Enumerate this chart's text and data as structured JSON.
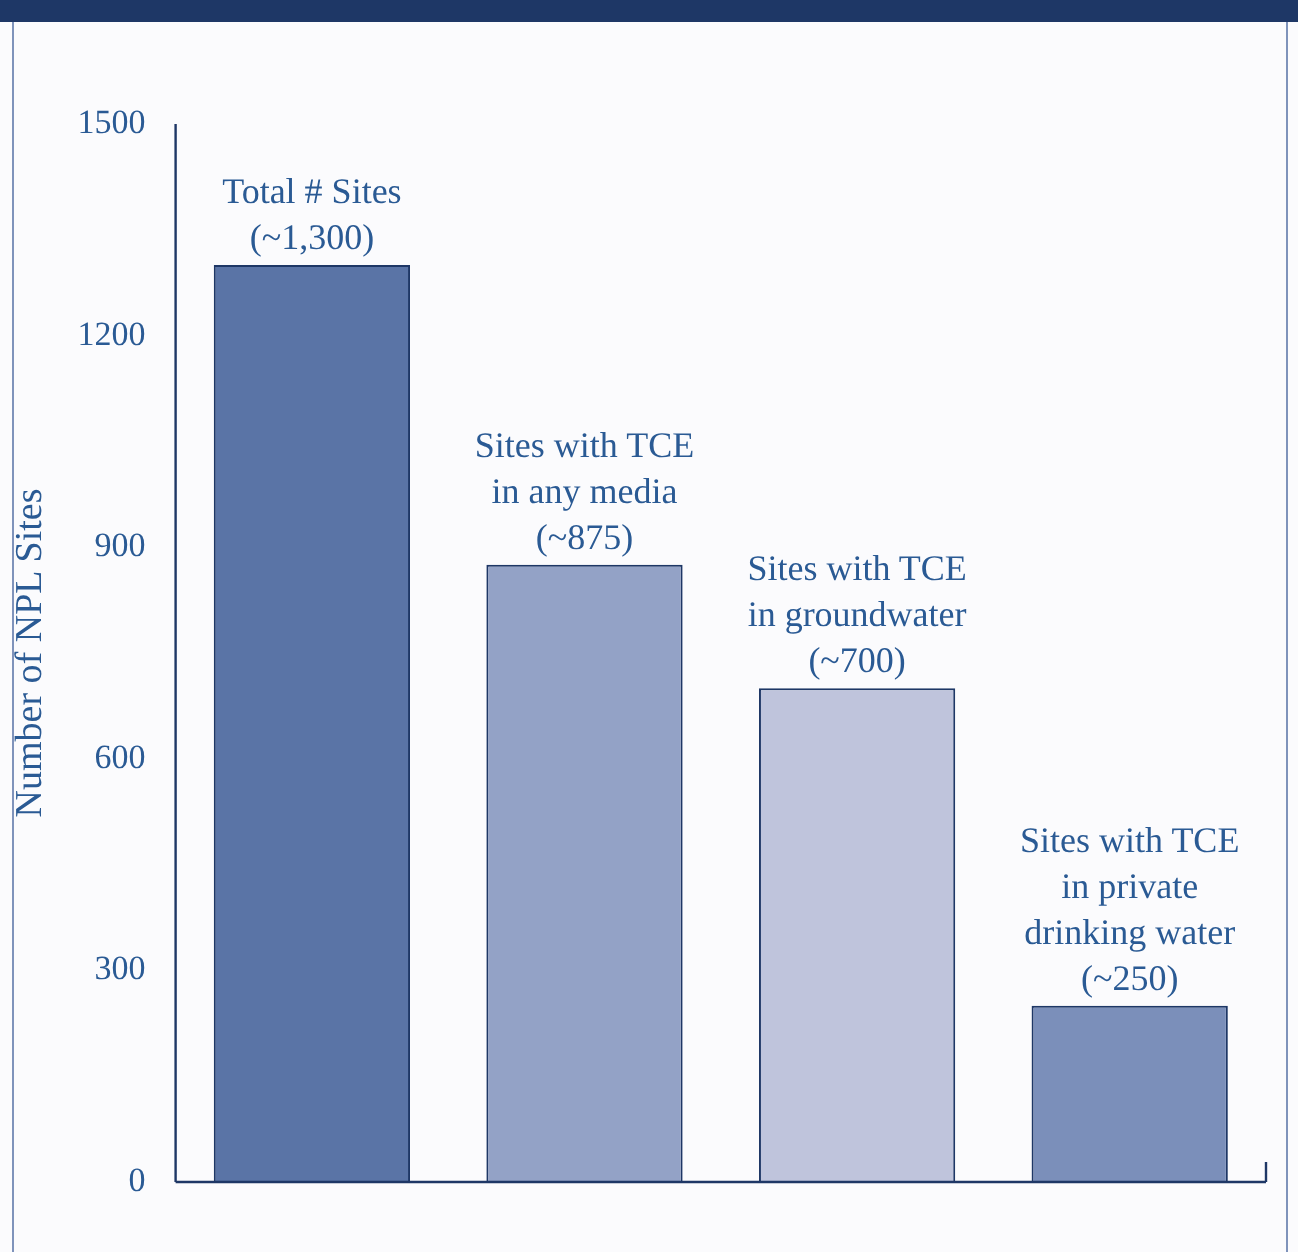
{
  "chart_data": {
    "type": "bar",
    "ylabel": "Number of NPL Sites",
    "categories": [
      "Total # Sites",
      "Sites with TCE in any media",
      "Sites with TCE in groundwater",
      "Sites with TCE in private drinking water"
    ],
    "values": [
      1300,
      875,
      700,
      250
    ],
    "colors": [
      "#5a74a6",
      "#93a2c6",
      "#bfc4dc",
      "#7b8fba"
    ],
    "value_labels": [
      "(~1,300)",
      "(~875)",
      "(~700)",
      "(~250)"
    ],
    "ylim": [
      0,
      1500
    ],
    "yticks": [
      0,
      300,
      600,
      900,
      1200,
      1500
    ],
    "grid": false,
    "legend": false,
    "tick_labels": "y"
  }
}
